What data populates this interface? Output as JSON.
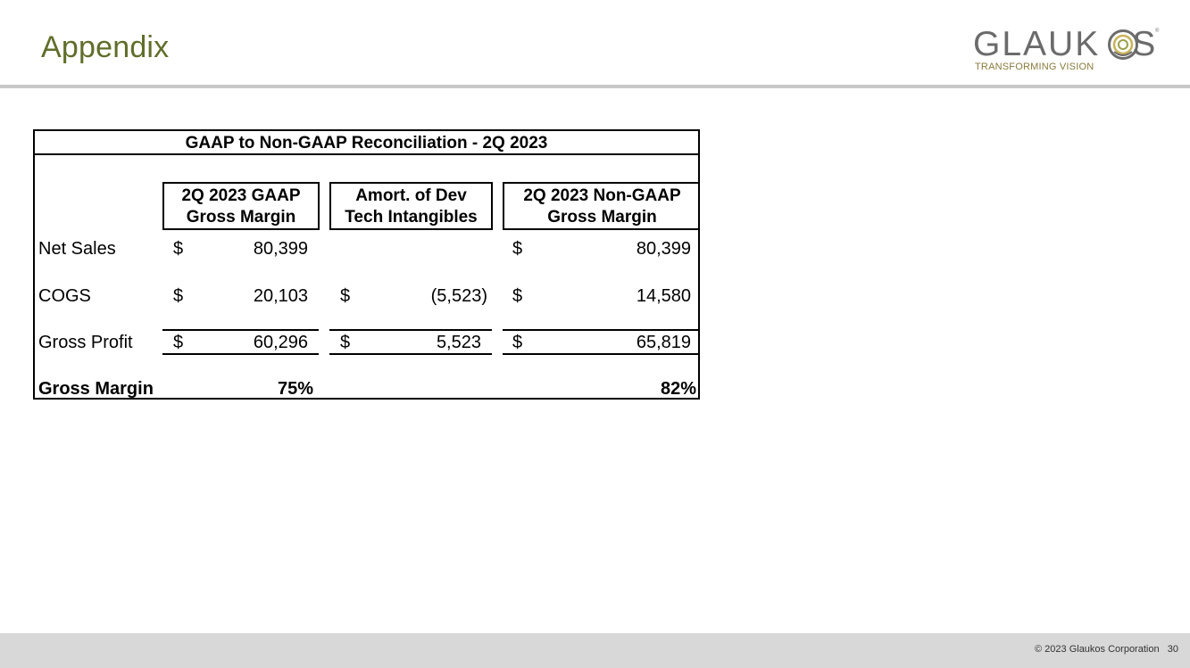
{
  "slide": {
    "title": "Appendix",
    "logo": {
      "word_left": "GLAUK",
      "word_right": "S",
      "tagline": "TRANSFORMING VISION",
      "trademark": "®"
    },
    "footer": {
      "copyright": "© 2023 Glaukos Corporation",
      "page_number": "30"
    }
  },
  "table": {
    "title": "GAAP to Non-GAAP Reconciliation - 2Q 2023",
    "columns": [
      {
        "line1": "2Q 2023 GAAP",
        "line2": "Gross Margin"
      },
      {
        "line1": "Amort. of Dev",
        "line2": "Tech Intangibles"
      },
      {
        "line1": "2Q 2023 Non-GAAP",
        "line2": "Gross Margin"
      }
    ],
    "rows": [
      {
        "label": "Net Sales",
        "c1_cur": "$",
        "c1": "80,399",
        "c2_cur": "",
        "c2": "",
        "c3_cur": "$",
        "c3": "80,399"
      },
      {
        "label": "COGS",
        "c1_cur": "$",
        "c1": "20,103",
        "c2_cur": "$",
        "c2": "(5,523)",
        "c3_cur": "$",
        "c3": "14,580"
      },
      {
        "label": "Gross Profit",
        "c1_cur": "$",
        "c1": "60,296",
        "c2_cur": "$",
        "c2": "5,523",
        "c3_cur": "$",
        "c3": "65,819"
      }
    ],
    "margin_row": {
      "label": "Gross Margin",
      "c1": "75%",
      "c3": "82%"
    }
  }
}
